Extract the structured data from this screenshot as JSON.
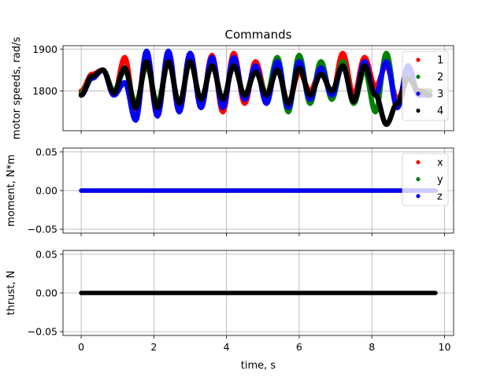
{
  "chart_data": [
    {
      "type": "scatter",
      "title": "Commands",
      "ylabel": "motor speeds, rad/s",
      "xlabel": "",
      "xlim": [
        -0.5,
        10.25
      ],
      "ylim": [
        1705,
        1908
      ],
      "xticks": [
        0,
        2,
        4,
        6,
        8,
        10
      ],
      "yticks": [
        1800,
        1900
      ],
      "ytick_labels": [
        "1800",
        "1900"
      ],
      "grid": true,
      "legend": "top-right",
      "series": [
        {
          "name": "1",
          "color": "#ff0000",
          "x": [
            0,
            0.3,
            0.6,
            0.9,
            1.2,
            1.5,
            1.8,
            2.1,
            2.4,
            2.7,
            3.0,
            3.3,
            3.6,
            3.9,
            4.2,
            4.5,
            4.8,
            5.1,
            5.4,
            5.7,
            6.0,
            6.3,
            6.6,
            6.9,
            7.2,
            7.5,
            7.8,
            8.1,
            8.4,
            8.7,
            9.0,
            9.3,
            9.6
          ],
          "y": [
            1800,
            1840,
            1850,
            1790,
            1880,
            1745,
            1880,
            1740,
            1890,
            1750,
            1890,
            1760,
            1885,
            1750,
            1890,
            1770,
            1870,
            1790,
            1860,
            1770,
            1845,
            1800,
            1850,
            1790,
            1890,
            1790,
            1880,
            1810,
            1860,
            1780,
            1830,
            1800,
            1800
          ]
        },
        {
          "name": "2",
          "color": "#008000",
          "x": [
            0,
            0.3,
            0.6,
            0.9,
            1.2,
            1.5,
            1.8,
            2.1,
            2.4,
            2.7,
            3.0,
            3.3,
            3.6,
            3.9,
            4.2,
            4.5,
            4.8,
            5.1,
            5.4,
            5.7,
            6.0,
            6.3,
            6.6,
            6.9,
            7.2,
            7.5,
            7.8,
            8.1,
            8.4,
            8.7,
            9.0,
            9.3,
            9.6
          ],
          "y": [
            1795,
            1835,
            1850,
            1800,
            1850,
            1770,
            1860,
            1770,
            1870,
            1770,
            1870,
            1780,
            1865,
            1780,
            1860,
            1790,
            1855,
            1790,
            1880,
            1750,
            1885,
            1770,
            1870,
            1780,
            1870,
            1770,
            1850,
            1750,
            1890,
            1760,
            1840,
            1790,
            1800
          ]
        },
        {
          "name": "3",
          "color": "#0000ff",
          "x": [
            0,
            0.3,
            0.6,
            0.9,
            1.2,
            1.5,
            1.8,
            2.1,
            2.4,
            2.7,
            3.0,
            3.3,
            3.6,
            3.9,
            4.2,
            4.5,
            4.8,
            5.1,
            5.4,
            5.7,
            6.0,
            6.3,
            6.6,
            6.9,
            7.2,
            7.5,
            7.8,
            8.1,
            8.4,
            8.7,
            9.0,
            9.3,
            9.6
          ],
          "y": [
            1790,
            1830,
            1850,
            1790,
            1820,
            1730,
            1895,
            1740,
            1895,
            1750,
            1890,
            1760,
            1880,
            1760,
            1880,
            1780,
            1860,
            1770,
            1870,
            1760,
            1870,
            1780,
            1855,
            1790,
            1860,
            1775,
            1870,
            1790,
            1870,
            1760,
            1860,
            1790,
            1790
          ]
        },
        {
          "name": "4",
          "color": "#000000",
          "x": [
            0,
            0.3,
            0.6,
            0.9,
            1.2,
            1.5,
            1.8,
            2.1,
            2.4,
            2.7,
            3.0,
            3.3,
            3.6,
            3.9,
            4.2,
            4.5,
            4.8,
            5.1,
            5.4,
            5.7,
            6.0,
            6.3,
            6.6,
            6.9,
            7.2,
            7.5,
            7.8,
            8.1,
            8.4,
            8.7,
            9.0,
            9.3,
            9.6
          ],
          "y": [
            1790,
            1835,
            1850,
            1795,
            1855,
            1760,
            1870,
            1760,
            1870,
            1770,
            1870,
            1780,
            1860,
            1780,
            1860,
            1790,
            1845,
            1790,
            1850,
            1770,
            1855,
            1790,
            1840,
            1800,
            1860,
            1775,
            1860,
            1790,
            1720,
            1770,
            1830,
            1800,
            1790
          ]
        }
      ]
    },
    {
      "type": "scatter",
      "title": "",
      "ylabel": "moment, N*m",
      "xlabel": "",
      "xlim": [
        -0.5,
        10.25
      ],
      "ylim": [
        -0.055,
        0.055
      ],
      "xticks": [
        0,
        2,
        4,
        6,
        8,
        10
      ],
      "yticks": [
        -0.05,
        0.0,
        0.05
      ],
      "ytick_labels": [
        "−0.05",
        "0.00",
        "0.05"
      ],
      "grid": true,
      "legend": "top-right",
      "series": [
        {
          "name": "x",
          "color": "#ff0000",
          "x": [
            0,
            9.75
          ],
          "y": [
            0,
            0
          ]
        },
        {
          "name": "y",
          "color": "#008000",
          "x": [
            0,
            9.75
          ],
          "y": [
            0,
            0
          ]
        },
        {
          "name": "z",
          "color": "#0000ff",
          "x": [
            0,
            9.75
          ],
          "y": [
            0,
            0
          ]
        }
      ]
    },
    {
      "type": "scatter",
      "title": "",
      "ylabel": "thrust, N",
      "xlabel": "time, s",
      "xlim": [
        -0.5,
        10.25
      ],
      "ylim": [
        -0.055,
        0.055
      ],
      "xticks": [
        0,
        2,
        4,
        6,
        8,
        10
      ],
      "xtick_labels": [
        "0",
        "2",
        "4",
        "6",
        "8",
        "10"
      ],
      "yticks": [
        -0.05,
        0.0,
        0.05
      ],
      "ytick_labels": [
        "−0.05",
        "0.00",
        "0.05"
      ],
      "grid": true,
      "series": [
        {
          "color": "#000000",
          "x": [
            0,
            9.75
          ],
          "y": [
            0,
            0
          ]
        }
      ]
    }
  ]
}
